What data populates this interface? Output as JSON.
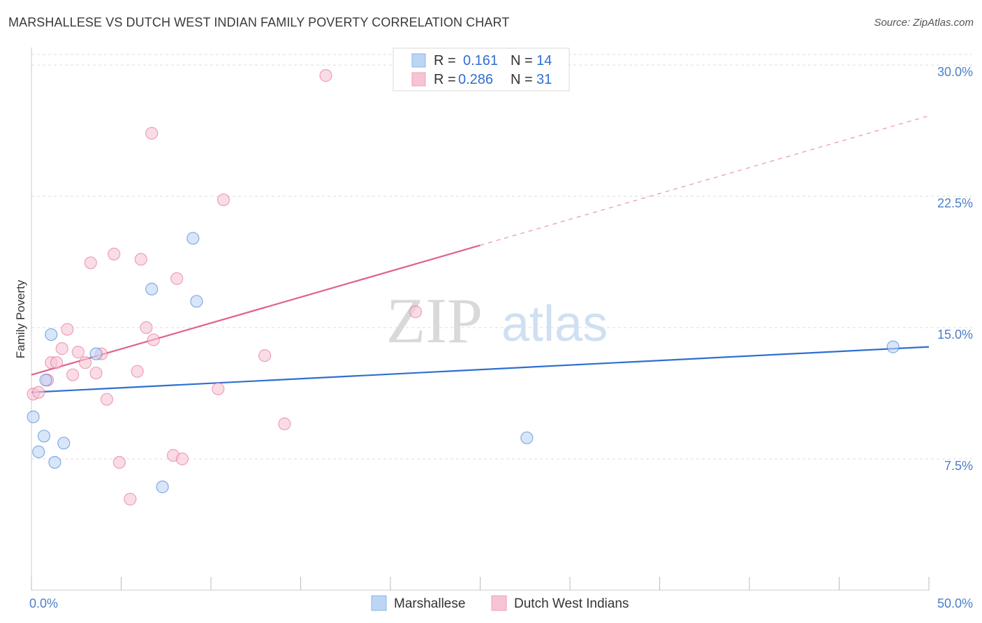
{
  "title": "MARSHALLESE VS DUTCH WEST INDIAN FAMILY POVERTY CORRELATION CHART",
  "source": "Source: ZipAtlas.com",
  "watermark": {
    "part1": "ZIP",
    "part2": "atlas"
  },
  "colors": {
    "blue": "#2f6fd0",
    "blue_fill": "#bcd5f5",
    "pink": "#e0608a",
    "pink_fill": "#f6c4d3",
    "grid": "#dddddd",
    "tick_text": "#4a7fc8"
  },
  "legend": {
    "rows": [
      {
        "r_label": "R =",
        "r_value": "0.161",
        "n_label": "N =",
        "n_value": "14"
      },
      {
        "r_label": "R =",
        "r_value": "0.286",
        "n_label": "N =",
        "n_value": "31"
      }
    ]
  },
  "chart_data": {
    "type": "scatter",
    "title": "MARSHALLESE VS DUTCH WEST INDIAN FAMILY POVERTY CORRELATION CHART",
    "xlabel": "",
    "ylabel": "Family Poverty",
    "xlim": [
      0,
      50
    ],
    "ylim": [
      0,
      31
    ],
    "x_tick_labels": [
      {
        "value": 0,
        "label": "0.0%"
      },
      {
        "value": 50,
        "label": "50.0%"
      }
    ],
    "y_tick_labels": [
      {
        "value": 7.5,
        "label": "7.5%"
      },
      {
        "value": 15,
        "label": "15.0%"
      },
      {
        "value": 22.5,
        "label": "22.5%"
      },
      {
        "value": 30,
        "label": "30.0%"
      }
    ],
    "series": [
      {
        "name": "Marshallese",
        "color": "#2f6fd0",
        "fill": "#bcd5f5",
        "points": [
          {
            "x": 0.1,
            "y": 9.9
          },
          {
            "x": 0.4,
            "y": 7.9
          },
          {
            "x": 0.7,
            "y": 8.8
          },
          {
            "x": 0.8,
            "y": 12.0
          },
          {
            "x": 1.1,
            "y": 14.6
          },
          {
            "x": 1.3,
            "y": 7.3
          },
          {
            "x": 1.8,
            "y": 8.4
          },
          {
            "x": 3.6,
            "y": 13.5
          },
          {
            "x": 6.7,
            "y": 17.2
          },
          {
            "x": 7.3,
            "y": 5.9
          },
          {
            "x": 9.0,
            "y": 20.1
          },
          {
            "x": 9.2,
            "y": 16.5
          },
          {
            "x": 27.6,
            "y": 8.7
          },
          {
            "x": 48.0,
            "y": 13.9
          }
        ],
        "trend": {
          "x0": 0,
          "y0": 11.3,
          "x1": 50,
          "y1": 13.9
        }
      },
      {
        "name": "Dutch West Indians",
        "color": "#e0608a",
        "fill": "#f6c4d3",
        "points": [
          {
            "x": 0.1,
            "y": 11.2
          },
          {
            "x": 0.4,
            "y": 11.3
          },
          {
            "x": 0.9,
            "y": 12.0
          },
          {
            "x": 1.1,
            "y": 13.0
          },
          {
            "x": 1.4,
            "y": 13.0
          },
          {
            "x": 1.7,
            "y": 13.8
          },
          {
            "x": 2.0,
            "y": 14.9
          },
          {
            "x": 2.3,
            "y": 12.3
          },
          {
            "x": 2.6,
            "y": 13.6
          },
          {
            "x": 3.0,
            "y": 13.0
          },
          {
            "x": 3.3,
            "y": 18.7
          },
          {
            "x": 3.6,
            "y": 12.4
          },
          {
            "x": 3.9,
            "y": 13.5
          },
          {
            "x": 4.2,
            "y": 10.9
          },
          {
            "x": 4.6,
            "y": 19.2
          },
          {
            "x": 4.9,
            "y": 7.3
          },
          {
            "x": 5.5,
            "y": 5.2
          },
          {
            "x": 5.9,
            "y": 12.5
          },
          {
            "x": 6.1,
            "y": 18.9
          },
          {
            "x": 6.4,
            "y": 15.0
          },
          {
            "x": 6.8,
            "y": 14.3
          },
          {
            "x": 6.7,
            "y": 26.1
          },
          {
            "x": 7.9,
            "y": 7.7
          },
          {
            "x": 8.1,
            "y": 17.8
          },
          {
            "x": 8.4,
            "y": 7.5
          },
          {
            "x": 10.4,
            "y": 11.5
          },
          {
            "x": 10.7,
            "y": 22.3
          },
          {
            "x": 13.0,
            "y": 13.4
          },
          {
            "x": 14.1,
            "y": 9.5
          },
          {
            "x": 16.4,
            "y": 29.4
          },
          {
            "x": 21.4,
            "y": 15.9
          }
        ],
        "trend": {
          "x0": 0,
          "y0": 12.3,
          "x1": 25,
          "y1": 19.7
        },
        "trend_dashed": {
          "x0": 25,
          "y0": 19.7,
          "x1": 50,
          "y1": 27.1
        }
      }
    ],
    "legend_position": "top-center",
    "bottom_legend": [
      "Marshallese",
      "Dutch West Indians"
    ],
    "grid": true
  }
}
